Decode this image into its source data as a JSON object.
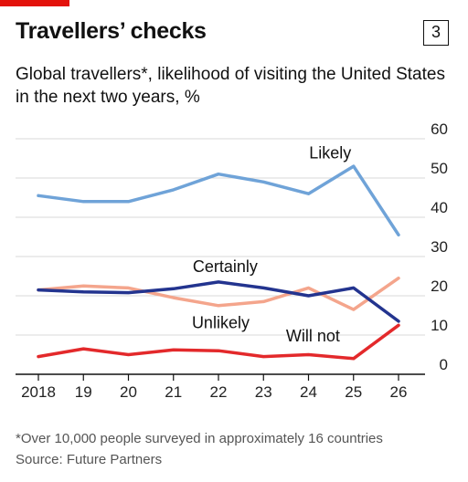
{
  "header": {
    "title": "Travellers’ checks",
    "badge": "3",
    "subtitle": "Global travellers*, likelihood of visiting the United States in the next two years, %"
  },
  "footer": {
    "footnote": "*Over 10,000 people surveyed in approximately 16 countries",
    "source": "Source: Future Partners"
  },
  "colors": {
    "accent": "#e3120b",
    "likely": "#6fa3d8",
    "certainly": "#23348f",
    "unlikely": "#f4a58c",
    "will_not": "#e3292b",
    "grid": "#d9d9d9",
    "axis": "#111111"
  },
  "chart_data": {
    "type": "line",
    "title": "",
    "xlabel": "",
    "ylabel": "",
    "x": [
      2018,
      2019,
      2020,
      2021,
      2022,
      2023,
      2024,
      2025,
      2026
    ],
    "x_tick_labels": [
      "2018",
      "19",
      "20",
      "21",
      "22",
      "23",
      "24",
      "25",
      "26"
    ],
    "y_ticks": [
      "60",
      "50",
      "40",
      "30",
      "20",
      "10",
      "0"
    ],
    "ylim": [
      0,
      60
    ],
    "grid": true,
    "y_axis_side": "right",
    "series": [
      {
        "name": "Likely",
        "color": "#6fa3d8",
        "values": [
          45.5,
          44.0,
          44.0,
          47.0,
          51.0,
          49.0,
          46.0,
          53.0,
          35.5
        ]
      },
      {
        "name": "Certainly",
        "color": "#23348f",
        "values": [
          21.5,
          21.0,
          20.8,
          21.8,
          23.5,
          22.0,
          20.0,
          22.0,
          13.5
        ]
      },
      {
        "name": "Unlikely",
        "color": "#f4a58c",
        "values": [
          21.5,
          22.5,
          22.0,
          19.5,
          17.5,
          18.5,
          22.0,
          16.5,
          24.5
        ]
      },
      {
        "name": "Will not",
        "color": "#e3292b",
        "values": [
          4.5,
          6.5,
          5.0,
          6.2,
          6.0,
          4.5,
          5.0,
          4.0,
          12.5
        ]
      }
    ]
  }
}
